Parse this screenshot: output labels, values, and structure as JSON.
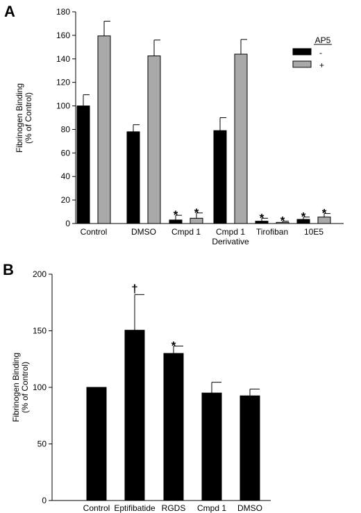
{
  "chart_data": [
    {
      "panel": "A",
      "type": "bar",
      "ylabel": [
        "Fibrinogen Binding",
        "(% of Control)"
      ],
      "ylim": [
        0,
        180
      ],
      "yticks": [
        0,
        20,
        40,
        60,
        80,
        100,
        120,
        140,
        160,
        180
      ],
      "categories": [
        [
          "Control"
        ],
        [
          "DMSO"
        ],
        [
          "Cmpd 1"
        ],
        [
          "Cmpd 1",
          "Derivative"
        ],
        [
          "Tirofiban"
        ],
        [
          "10E5"
        ]
      ],
      "legend": {
        "title": "AP5",
        "position": "top-right"
      },
      "series": [
        {
          "name": "-",
          "color": "#000000",
          "values": [
            100,
            78,
            3,
            79,
            2,
            3.5
          ],
          "errors": [
            9.5,
            6,
            4,
            11,
            2.5,
            2
          ],
          "marks": [
            "",
            "",
            "*",
            "",
            "*",
            "*"
          ]
        },
        {
          "name": "+",
          "color": "#a9a9a9",
          "values": [
            159.5,
            142.5,
            4.5,
            144,
            1,
            5.5
          ],
          "errors": [
            12.5,
            13.5,
            4.5,
            12.5,
            1,
            3
          ],
          "marks": [
            "",
            "",
            "*",
            "",
            "*",
            "*"
          ]
        }
      ]
    },
    {
      "panel": "B",
      "type": "bar",
      "ylabel": [
        "Fibrinogen Binding",
        "(% of Control)"
      ],
      "ylim": [
        0,
        200
      ],
      "yticks": [
        0,
        50,
        100,
        150,
        200
      ],
      "categories": [
        [
          "Control"
        ],
        [
          "Eptifibatide"
        ],
        [
          "RGDS"
        ],
        [
          "Cmpd 1"
        ],
        [
          "DMSO"
        ]
      ],
      "series": [
        {
          "color": "#000000",
          "values": [
            100,
            150.5,
            130,
            95,
            92.5
          ],
          "errors": [
            0,
            31.5,
            6.5,
            9.5,
            6
          ],
          "marks": [
            "",
            "†",
            "*",
            "",
            ""
          ]
        }
      ]
    }
  ]
}
